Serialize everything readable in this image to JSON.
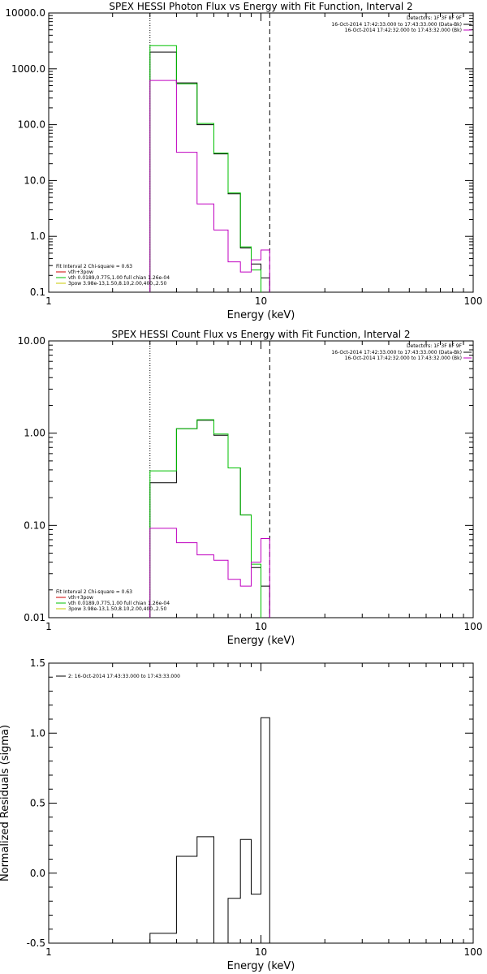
{
  "chart_data": [
    {
      "type": "line",
      "title": "SPEX HESSI Photon Flux vs Energy with Fit Function, Interval 2",
      "xlabel": "Energy (keV)",
      "ylabel": "",
      "xscale": "log",
      "yscale": "log",
      "xlim": [
        1,
        100
      ],
      "ylim": [
        0.1,
        10000
      ],
      "xticks": [
        "1",
        "10",
        "100"
      ],
      "yticks": [
        "0.1",
        "1.0",
        "10.0",
        "100.0",
        "1000.0",
        "10000.0"
      ],
      "vlines": [
        {
          "x": 3,
          "style": "dotted"
        },
        {
          "x": 11,
          "style": "dashed"
        }
      ],
      "legend_right": {
        "header": "Detectors: 1F 3F 8F 9F",
        "entries": [
          {
            "label": "16-Oct-2014 17:42:33.000 to 17:43:33.000 (Data-Bk)",
            "color": "#000000"
          },
          {
            "label": "16-Oct-2014 17:42:32.000 to 17:43:32.000 (Bk)",
            "color": "#c000c0"
          }
        ]
      },
      "legend_left": {
        "header": "Fit Interval 2   Chi-square = 0.63",
        "entries": [
          {
            "label": "vth+3pow",
            "color": "#d00000"
          },
          {
            "label": "vth 0.0189,0.775,1.00  full chian 1.26e-04",
            "color": "#00c000"
          },
          {
            "label": "3pow 3.98e-13,1.50,8.10,2.00,400.,2.50",
            "color": "#c8c800"
          }
        ]
      },
      "series": [
        {
          "color": "#000000",
          "edges": [
            3,
            4,
            5,
            6,
            7,
            8,
            9,
            10,
            11
          ],
          "values": [
            2000,
            560,
            100,
            30,
            5.8,
            0.62,
            0.32,
            0.18
          ]
        },
        {
          "color": "#00c000",
          "edges": [
            3,
            4,
            5,
            6,
            7,
            8,
            9,
            10
          ],
          "values": [
            2600,
            540,
            105,
            31,
            6.0,
            0.65,
            0.25
          ]
        },
        {
          "color": "#c000c0",
          "edges": [
            3,
            4,
            5,
            6,
            7,
            8,
            9,
            10,
            11
          ],
          "values": [
            620,
            32,
            3.8,
            1.3,
            0.35,
            0.23,
            0.38,
            0.57
          ]
        }
      ]
    },
    {
      "type": "line",
      "title": "SPEX HESSI Count Flux vs Energy with Fit Function, Interval 2",
      "xlabel": "Energy (keV)",
      "ylabel": "",
      "xscale": "log",
      "yscale": "log",
      "xlim": [
        1,
        100
      ],
      "ylim": [
        0.01,
        10
      ],
      "xticks": [
        "1",
        "10",
        "100"
      ],
      "yticks": [
        "0.01",
        "0.10",
        "1.00",
        "10.00"
      ],
      "vlines": [
        {
          "x": 3,
          "style": "dotted"
        },
        {
          "x": 11,
          "style": "dashed"
        }
      ],
      "legend_right": {
        "header": "Detectors: 1F 3F 8F 9F",
        "entries": [
          {
            "label": "16-Oct-2014 17:42:33.000 to 17:43:33.000 (Data-Bk)",
            "color": "#000000"
          },
          {
            "label": "16-Oct-2014 17:42:32.000 to 17:43:32.000 (Bk)",
            "color": "#c000c0"
          }
        ]
      },
      "legend_left": {
        "header": "Fit Interval 2   Chi-square = 0.63",
        "entries": [
          {
            "label": "vth+3pow",
            "color": "#d00000"
          },
          {
            "label": "vth 0.0189,0.775,1.00  full chian 1.26e-04",
            "color": "#00c000"
          },
          {
            "label": "3pow 3.98e-13,1.50,8.10,2.00,400.,2.50",
            "color": "#c8c800"
          }
        ]
      },
      "series": [
        {
          "color": "#000000",
          "edges": [
            3,
            4,
            5,
            6,
            7,
            8,
            9,
            10,
            11
          ],
          "values": [
            0.29,
            1.12,
            1.38,
            0.95,
            0.42,
            0.13,
            0.035,
            0.022
          ]
        },
        {
          "color": "#00c000",
          "edges": [
            3,
            4,
            5,
            6,
            7,
            8,
            9,
            10
          ],
          "values": [
            0.39,
            1.12,
            1.4,
            0.98,
            0.42,
            0.13,
            0.038
          ]
        },
        {
          "color": "#c000c0",
          "edges": [
            3,
            4,
            5,
            6,
            7,
            8,
            9,
            10,
            11
          ],
          "values": [
            0.093,
            0.065,
            0.048,
            0.042,
            0.026,
            0.022,
            0.04,
            0.072
          ]
        }
      ]
    },
    {
      "type": "line",
      "title": "",
      "xlabel": "Energy (keV)",
      "ylabel": "Normalized Residuals (sigma)",
      "xscale": "log",
      "yscale": "linear",
      "xlim": [
        1,
        100
      ],
      "ylim": [
        -0.5,
        1.5
      ],
      "xticks": [
        "1",
        "10",
        "100"
      ],
      "yticks": [
        "-0.5",
        "0.0",
        "0.5",
        "1.0",
        "1.5"
      ],
      "legend": {
        "label": "2: 16-Oct-2014 17:43:33.000 to 17:43:33.000",
        "color": "#000000"
      },
      "series": [
        {
          "color": "#000000",
          "edges": [
            3,
            4,
            5,
            6,
            7,
            8,
            9,
            10,
            11
          ],
          "values": [
            -0.43,
            0.12,
            0.26,
            -0.5,
            -0.18,
            0.24,
            -0.15,
            1.11
          ]
        }
      ]
    }
  ]
}
